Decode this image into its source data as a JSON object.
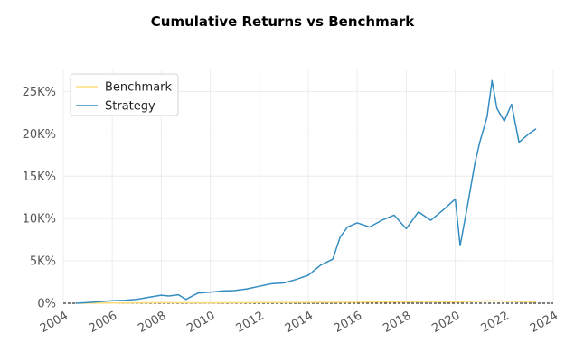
{
  "chart_data": {
    "type": "line",
    "title": "Cumulative Returns vs Benchmark",
    "xlabel": "",
    "ylabel": "",
    "x_ticks": [
      "2004",
      "2006",
      "2008",
      "2010",
      "2012",
      "2014",
      "2016",
      "2018",
      "2020",
      "2022",
      "2024"
    ],
    "y_ticks": [
      "0%",
      "5K%",
      "10K%",
      "15K%",
      "20K%",
      "25K%"
    ],
    "xlim": [
      2004,
      2024
    ],
    "ylim": [
      0,
      27500
    ],
    "y_tick_values": [
      0,
      5000,
      10000,
      15000,
      20000,
      25000
    ],
    "x_tick_values": [
      2004,
      2006,
      2008,
      2010,
      2012,
      2014,
      2016,
      2018,
      2020,
      2022,
      2024
    ],
    "grid": true,
    "baseline": 0,
    "legend_position": "top-left",
    "colors": {
      "benchmark": "#fedd78",
      "strategy": "#348dc1",
      "baseline": "#000000"
    },
    "series": [
      {
        "name": "Benchmark",
        "x": [
          2004.5,
          2006,
          2008,
          2010,
          2012,
          2014,
          2016,
          2018,
          2019,
          2020,
          2021,
          2021.5,
          2022,
          2022.5,
          2023.3
        ],
        "values": [
          0,
          20,
          60,
          40,
          80,
          100,
          120,
          150,
          180,
          130,
          250,
          300,
          250,
          200,
          150
        ]
      },
      {
        "name": "Strategy",
        "x": [
          2004.5,
          2005,
          2005.5,
          2006,
          2006.5,
          2007,
          2007.5,
          2008,
          2008.3,
          2008.7,
          2009,
          2009.5,
          2010,
          2010.5,
          2011,
          2011.5,
          2012,
          2012.5,
          2013,
          2013.5,
          2014,
          2014.5,
          2015,
          2015.3,
          2015.6,
          2016,
          2016.5,
          2017,
          2017.5,
          2018,
          2018.5,
          2019,
          2019.5,
          2020,
          2020.2,
          2020.5,
          2020.8,
          2021,
          2021.3,
          2021.5,
          2021.7,
          2022,
          2022.3,
          2022.6,
          2023,
          2023.3
        ],
        "values": [
          0,
          80,
          180,
          300,
          350,
          450,
          700,
          950,
          850,
          1000,
          450,
          1200,
          1300,
          1450,
          1500,
          1700,
          2000,
          2300,
          2400,
          2800,
          3300,
          4500,
          5200,
          7800,
          9000,
          9500,
          9000,
          9800,
          10400,
          8800,
          10800,
          9800,
          11000,
          12300,
          6800,
          11500,
          16500,
          19000,
          22000,
          26300,
          23000,
          21500,
          23500,
          19000,
          20000,
          20600
        ]
      }
    ]
  }
}
